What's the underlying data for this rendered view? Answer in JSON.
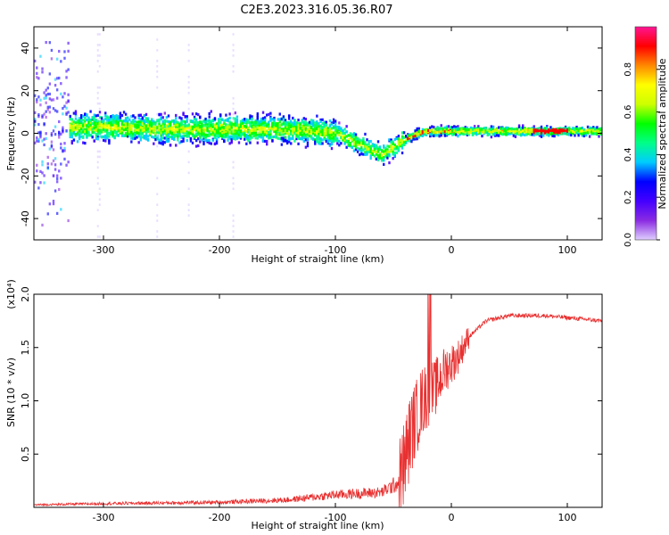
{
  "title": "C2E3.2023.316.05.36.R07",
  "chart_data": [
    {
      "type": "heatmap",
      "xlabel": "Height of straight line (km)",
      "ylabel": "Frequency (Hz)",
      "xlim": [
        -360,
        130
      ],
      "ylim": [
        -50,
        50
      ],
      "xticks": [
        -300,
        -200,
        -100,
        0,
        100
      ],
      "yticks": [
        -40,
        -20,
        0,
        20,
        40
      ],
      "colorbar": {
        "label": "Normalized spectral amplitude",
        "range": [
          0,
          1
        ],
        "ticks": [
          0.0,
          0.2,
          0.4,
          0.6,
          0.8
        ],
        "colormap": [
          "#e0d0ff",
          "#8a2be2",
          "#4400ff",
          "#0000ff",
          "#00ccff",
          "#00ff88",
          "#00ff00",
          "#ccff00",
          "#ffff00",
          "#ff8800",
          "#ff0000",
          "#ff1493"
        ]
      },
      "ridge": {
        "x": [
          -330,
          -300,
          -250,
          -200,
          -150,
          -120,
          -100,
          -90,
          -80,
          -70,
          -60,
          -50,
          -40,
          -30,
          -20,
          -10,
          0,
          50,
          100,
          130
        ],
        "y": [
          3,
          3,
          2,
          2,
          2,
          1,
          0,
          -3,
          -5,
          -8,
          -10,
          -6,
          -3,
          0,
          1,
          1,
          1,
          1,
          1,
          1
        ]
      },
      "grid": false
    },
    {
      "type": "line",
      "xlabel": "Height of straight line (km)",
      "ylabel": "SNR (10 * v/v)",
      "yscale_label": "(x10⁴)",
      "xlim": [
        -360,
        130
      ],
      "ylim": [
        0,
        2.0
      ],
      "xticks": [
        -300,
        -200,
        -100,
        0,
        100
      ],
      "yticks": [
        0.5,
        1.0,
        1.5,
        2.0
      ],
      "ytick_labels": [
        "0.5",
        "1.0",
        "1.5",
        "2.0"
      ],
      "series_color": "#e83030",
      "envelope": {
        "x": [
          -360,
          -300,
          -200,
          -140,
          -100,
          -60,
          -45,
          -35,
          -25,
          -15,
          -5,
          5,
          15,
          30,
          50,
          80,
          100,
          130
        ],
        "y": [
          0.02,
          0.03,
          0.04,
          0.06,
          0.1,
          0.12,
          0.2,
          0.7,
          1.0,
          1.1,
          1.3,
          1.4,
          1.6,
          1.75,
          1.8,
          1.8,
          1.78,
          1.75
        ]
      },
      "grid": false
    }
  ]
}
